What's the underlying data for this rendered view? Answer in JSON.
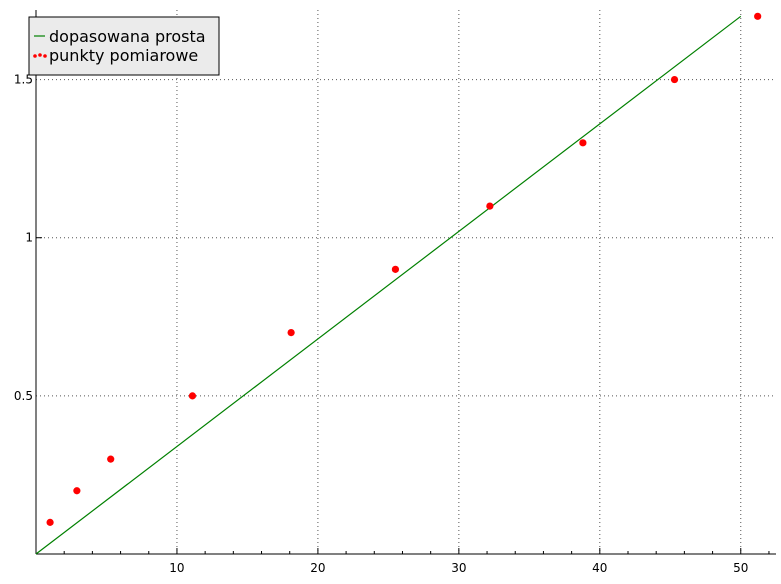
{
  "chart_data": {
    "type": "scatter",
    "title": "",
    "xlabel": "",
    "ylabel": "",
    "xlim": [
      0,
      52.5
    ],
    "ylim": [
      0,
      1.72
    ],
    "x_ticks": [
      10,
      20,
      30,
      40,
      50
    ],
    "y_ticks": [
      0.5,
      1,
      1.5
    ],
    "x_tick_labels": [
      "10",
      "20",
      "30",
      "40",
      "50"
    ],
    "y_tick_labels": [
      "0.5",
      "1",
      "1.5"
    ],
    "grid": true,
    "legend_position": "top-left",
    "legend": [
      "dopasowana prosta",
      "punkty pomiarowe"
    ],
    "series": [
      {
        "name": "dopasowana prosta",
        "kind": "line",
        "color": "#008000",
        "x": [
          0,
          50
        ],
        "y": [
          0,
          1.7
        ]
      },
      {
        "name": "punkty pomiarowe",
        "kind": "scatter",
        "color": "#ff0000",
        "x": [
          1,
          2.9,
          5.3,
          11.1,
          18.1,
          25.5,
          32.2,
          38.8,
          45.3,
          51.2
        ],
        "y": [
          0.1,
          0.2,
          0.3,
          0.5,
          0.7,
          0.9,
          1.1,
          1.3,
          1.5,
          1.7
        ]
      }
    ]
  }
}
